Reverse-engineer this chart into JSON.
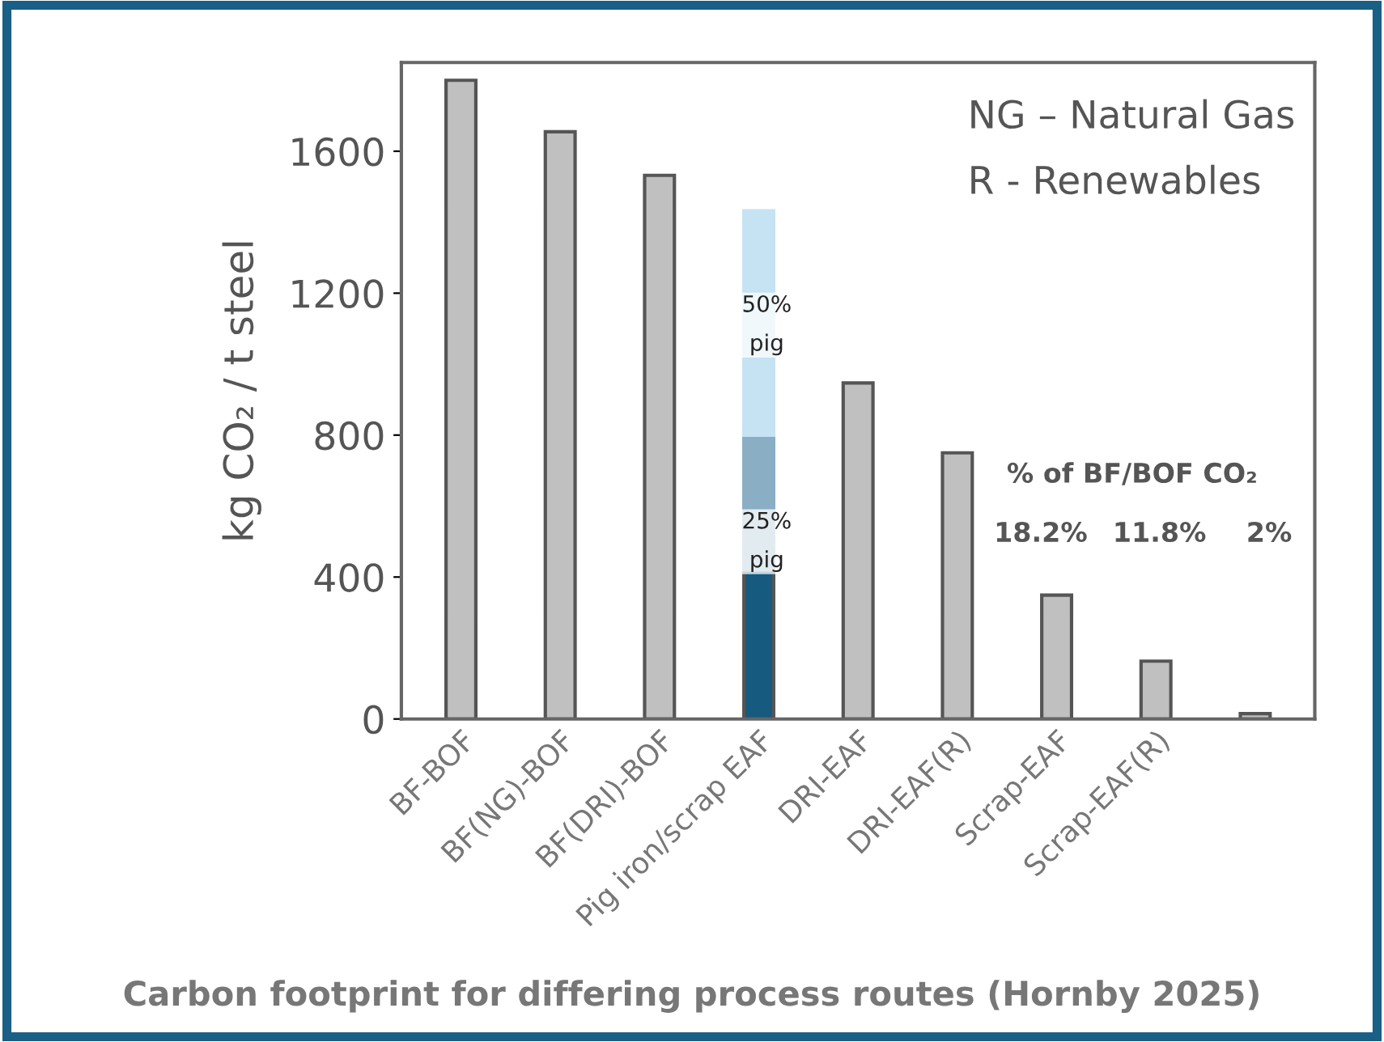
{
  "chart_data": {
    "type": "bar",
    "stacked": true,
    "title": "Carbon footprint for differing process routes (Hornby 2025)",
    "ylabel": "kg CO₂ / t steel",
    "categories": [
      "BF-BOF",
      "BF(NG)-BOF",
      "BF(DRI)-BOF",
      "Pig iron/scrap EAF",
      "DRI-EAF",
      "DRI-EAF(R)",
      "Scrap-EAF",
      "Scrap-EAF(R)",
      null
    ],
    "series": [
      {
        "colors": [
          "#c0c0c0",
          "#c0c0c0",
          "#c0c0c0",
          "#165a80",
          "#c0c0c0",
          "#c0c0c0",
          "#c0c0c0",
          "#c0c0c0",
          "#c0c0c0"
        ],
        "values": [
          1800,
          1655,
          1532,
          420,
          947,
          750,
          349,
          163,
          15
        ]
      },
      {
        "color": "#8aaec4",
        "values": [
          null,
          null,
          null,
          380,
          null,
          null,
          null,
          null,
          null
        ]
      },
      {
        "color": "#c5e3f3",
        "values": [
          null,
          null,
          null,
          632,
          null,
          null,
          null,
          null,
          null
        ]
      }
    ],
    "ylim": [
      0,
      1850
    ],
    "yticks": [
      0,
      400,
      800,
      1200,
      1600
    ],
    "annotations": [
      "50%\npig",
      "25%\npig",
      "NG – Natural Gas",
      "R - Renewables",
      "% of BF/BOF CO₂",
      "18.2%",
      "11.8%",
      "2%"
    ]
  }
}
